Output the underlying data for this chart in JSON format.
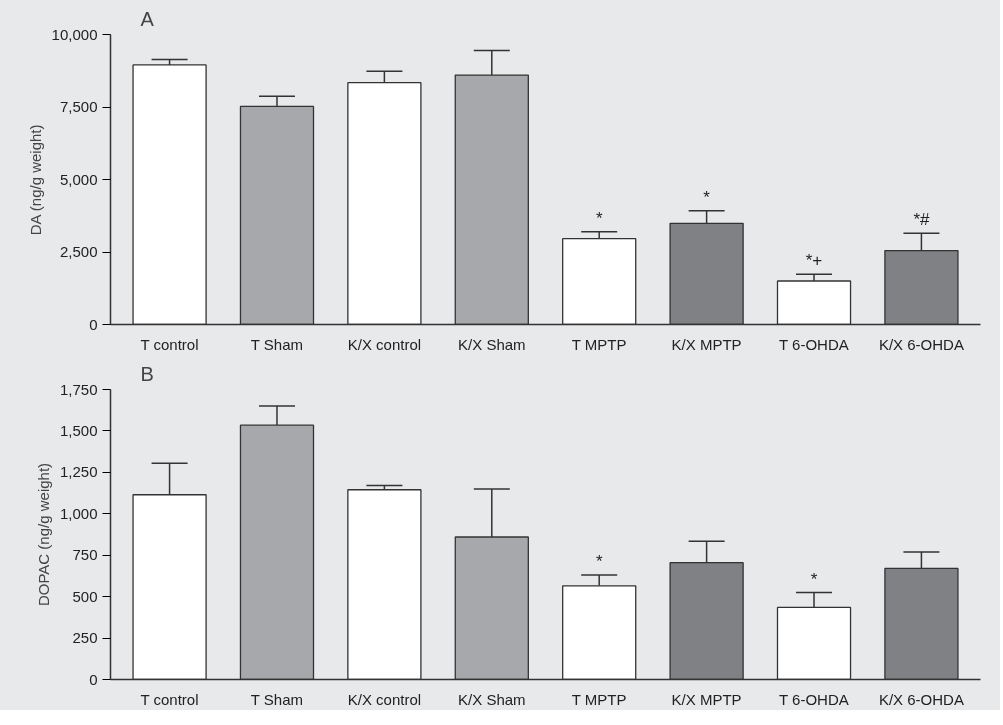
{
  "chart_data": [
    {
      "type": "bar",
      "title": "A",
      "ylabel": "DA (ng/g weight)",
      "categories": [
        "T control",
        "T Sham",
        "K/X control",
        "K/X Sham",
        "T MPTP",
        "K/X MPTP",
        "T 6-OHDA",
        "K/X 6-OHDA"
      ],
      "values": [
        8950,
        7520,
        8340,
        8600,
        2960,
        3490,
        1500,
        2550
      ],
      "errors": [
        [
          8950,
          9140
        ],
        [
          7520,
          7870
        ],
        [
          8340,
          8730
        ],
        [
          8600,
          9450
        ],
        [
          2960,
          3200
        ],
        [
          3490,
          3920
        ],
        [
          1500,
          1730
        ],
        [
          2550,
          3150
        ]
      ],
      "colors": [
        "#ffffff",
        "#a7a8ab",
        "#ffffff",
        "#a7a8ab",
        "#ffffff",
        "#808185",
        "#ffffff",
        "#808185"
      ],
      "ylim": [
        0,
        10000
      ],
      "yticks": [
        0,
        {
          "value": 2500,
          "label": "2,500"
        },
        {
          "value": 5000,
          "label": "5,000"
        },
        {
          "value": 7500,
          "label": "7,500"
        },
        {
          "value": 10000,
          "label": "10,000"
        }
      ],
      "annotations": [
        {
          "text": "*",
          "x": "T MPTP",
          "y": 3200
        },
        {
          "text": "*",
          "x": "K/X MPTP",
          "y": 3920
        },
        {
          "text": "*+",
          "x": "T 6-OHDA",
          "y": 1730
        },
        {
          "text": "*#",
          "x": "K/X 6-OHDA",
          "y": 3150
        }
      ]
    },
    {
      "type": "bar",
      "title": "B",
      "ylabel": "DOPAC (ng/g weight)",
      "categories": [
        "T control",
        "T Sham",
        "K/X control",
        "K/X Sham",
        "T MPTP",
        "K/X MPTP",
        "T 6-OHDA",
        "K/X 6-OHDA"
      ],
      "values": [
        1115,
        1535,
        1145,
        860,
        565,
        705,
        435,
        670
      ],
      "errors": [
        [
          1115,
          1305
        ],
        [
          1535,
          1650
        ],
        [
          1145,
          1170
        ],
        [
          860,
          1150
        ],
        [
          565,
          630
        ],
        [
          705,
          835
        ],
        [
          435,
          525
        ],
        [
          670,
          770
        ]
      ],
      "colors": [
        "#ffffff",
        "#a7a8ab",
        "#ffffff",
        "#a7a8ab",
        "#ffffff",
        "#808185",
        "#ffffff",
        "#808185"
      ],
      "ylim": [
        0,
        1750
      ],
      "yticks": [
        0,
        250,
        500,
        750,
        {
          "value": 1000,
          "label": "1,000"
        },
        {
          "value": 1250,
          "label": "1,250"
        },
        {
          "value": 1500,
          "label": "1,500"
        },
        {
          "value": 1750,
          "label": "1,750"
        }
      ],
      "annotations": [
        {
          "text": "*",
          "x": "T MPTP",
          "y": 630
        },
        {
          "text": "*",
          "x": "T 6-OHDA",
          "y": 525
        }
      ]
    }
  ]
}
